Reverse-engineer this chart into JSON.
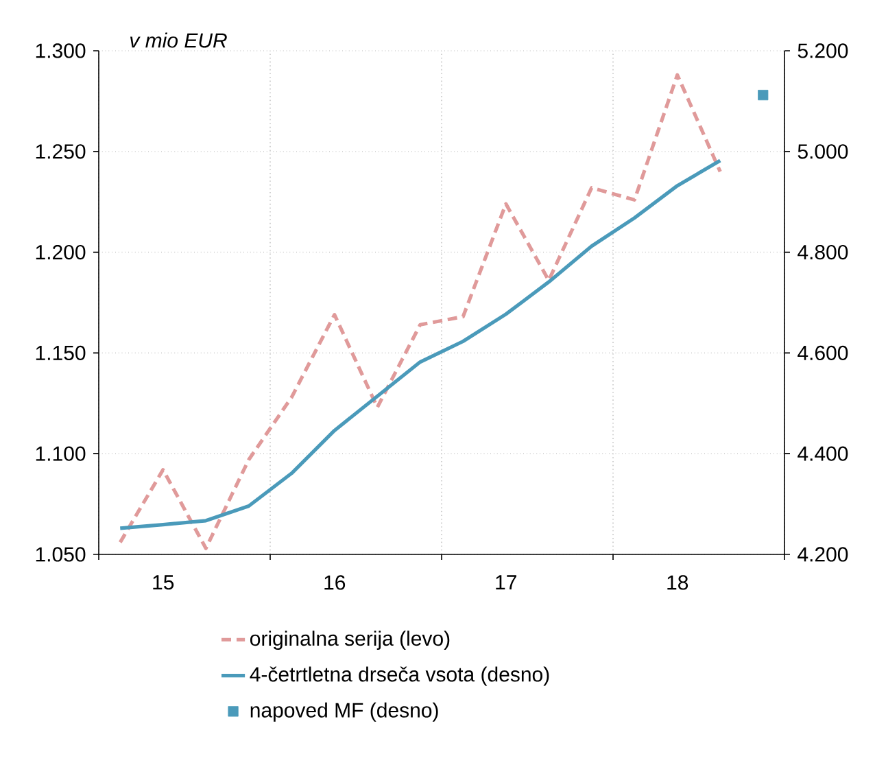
{
  "chart_data": {
    "type": "line",
    "ylabel": "v mio EUR",
    "categories": [
      null,
      "15",
      null,
      null,
      null,
      "16",
      null,
      null,
      null,
      "17",
      null,
      null,
      null,
      "18",
      null,
      null
    ],
    "ylim": [
      1.05,
      1.3
    ],
    "yticks": [
      {
        "value": 1.05,
        "label": "1.050"
      },
      {
        "value": 1.1,
        "label": "1.100"
      },
      {
        "value": 1.15,
        "label": "1.150"
      },
      {
        "value": 1.2,
        "label": "1.200"
      },
      {
        "value": 1.25,
        "label": "1.250"
      },
      {
        "value": 1.3,
        "label": "1.300"
      }
    ],
    "y2lim": [
      4.2,
      5.2
    ],
    "y2ticks": [
      {
        "value": 4.2,
        "label": "4.200"
      },
      {
        "value": 4.4,
        "label": "4.400"
      },
      {
        "value": 4.6,
        "label": "4.600"
      },
      {
        "value": 4.8,
        "label": "4.800"
      },
      {
        "value": 5.0,
        "label": "5.000"
      },
      {
        "value": 5.2,
        "label": "5.200"
      }
    ],
    "grid": true,
    "legend": "bottom",
    "series": [
      {
        "name": "originalna serija (levo)",
        "line_style": "dashed",
        "color": "#e09a9a",
        "values": [
          1.056,
          1.092,
          1.053,
          1.097,
          1.128,
          1.169,
          1.123,
          1.164,
          1.168,
          1.224,
          1.186,
          1.232,
          1.226,
          1.288,
          1.24,
          null
        ]
      },
      {
        "name": "4-četrtletna drseča vsota (desno)",
        "line_style": "solid",
        "axis": "y2",
        "color": "#4a9aba",
        "values": [
          4.252,
          4.259,
          4.267,
          4.296,
          4.361,
          4.446,
          4.514,
          4.582,
          4.623,
          4.677,
          4.741,
          4.812,
          4.868,
          4.932,
          4.982,
          null
        ]
      },
      {
        "name": "napoved MF (desno)",
        "type": "scatter",
        "marker": "square",
        "axis": "y2",
        "color": "#4a9aba",
        "values": [
          null,
          null,
          null,
          null,
          null,
          null,
          null,
          null,
          null,
          null,
          null,
          null,
          null,
          null,
          null,
          5.112
        ]
      }
    ]
  }
}
